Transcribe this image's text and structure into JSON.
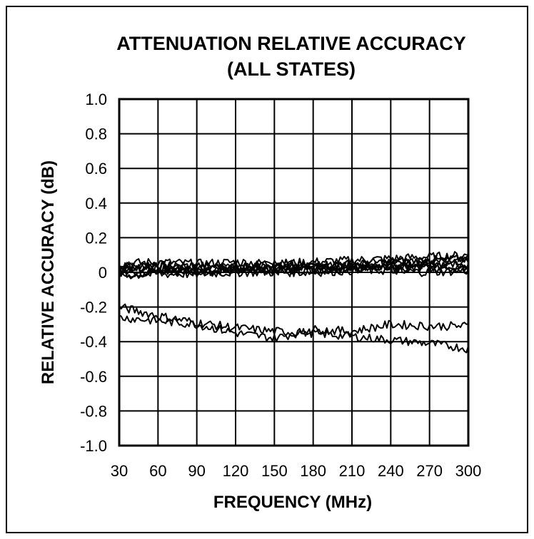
{
  "chart_data": {
    "type": "line",
    "title_lines": [
      "ATTENUATION RELATIVE ACCURACY",
      "(ALL STATES)"
    ],
    "xlabel": "FREQUENCY (MHz)",
    "ylabel": "RELATIVE ACCURACY (dB)",
    "xlim": [
      30,
      300
    ],
    "ylim": [
      -1.0,
      1.0
    ],
    "x_ticks": [
      30,
      60,
      90,
      120,
      150,
      180,
      210,
      240,
      270,
      300
    ],
    "x_tick_labels": [
      "30",
      "60",
      "90",
      "120",
      "150",
      "180",
      "210",
      "240",
      "270",
      "300"
    ],
    "y_ticks": [
      1.0,
      0.8,
      0.6,
      0.4,
      0.2,
      0,
      -0.2,
      -0.4,
      -0.6,
      -0.8,
      -1.0
    ],
    "y_tick_labels": [
      "1.0",
      "0.8",
      "0.6",
      "0.4",
      "0.2",
      "0",
      "-0.2",
      "-0.4",
      "-0.6",
      "-0.8",
      "-1.0"
    ],
    "grid": true,
    "line_color": "#000000",
    "series": [
      {
        "x": [
          30,
          60,
          90,
          120,
          150,
          180,
          210,
          240,
          270,
          300
        ],
        "y": [
          0.03,
          0.04,
          0.03,
          0.04,
          0.04,
          0.03,
          0.05,
          0.05,
          0.06,
          0.06
        ]
      },
      {
        "x": [
          30,
          60,
          90,
          120,
          150,
          180,
          210,
          240,
          270,
          300
        ],
        "y": [
          0.01,
          0.02,
          0.02,
          0.02,
          0.03,
          0.03,
          0.04,
          0.04,
          0.05,
          0.05
        ]
      },
      {
        "x": [
          30,
          60,
          90,
          120,
          150,
          180,
          210,
          240,
          270,
          300
        ],
        "y": [
          -0.01,
          0.0,
          0.01,
          0.01,
          0.01,
          0.02,
          0.02,
          0.03,
          0.03,
          0.04
        ]
      },
      {
        "x": [
          30,
          60,
          90,
          120,
          150,
          180,
          210,
          240,
          270,
          300
        ],
        "y": [
          0.05,
          0.06,
          0.05,
          0.06,
          0.05,
          0.06,
          0.07,
          0.08,
          0.09,
          0.1
        ]
      },
      {
        "x": [
          30,
          60,
          90,
          120,
          150,
          180,
          210,
          240,
          270,
          300
        ],
        "y": [
          0.0,
          0.01,
          0.0,
          0.02,
          0.02,
          0.01,
          0.03,
          0.02,
          0.02,
          0.03
        ]
      },
      {
        "x": [
          30,
          60,
          90,
          120,
          150,
          180,
          210,
          240,
          270,
          300
        ],
        "y": [
          0.04,
          0.03,
          0.04,
          0.03,
          0.05,
          0.04,
          0.05,
          0.06,
          0.07,
          0.08
        ]
      },
      {
        "x": [
          30,
          60,
          90,
          120,
          150,
          180,
          210,
          240,
          270,
          300
        ],
        "y": [
          0.02,
          0.03,
          0.01,
          0.03,
          0.02,
          0.04,
          0.03,
          0.05,
          0.04,
          0.07
        ]
      },
      {
        "x": [
          30,
          60,
          90,
          120,
          150,
          180,
          210,
          240,
          270,
          300
        ],
        "y": [
          -0.02,
          -0.01,
          -0.01,
          0.0,
          0.0,
          0.0,
          0.01,
          0.01,
          0.0,
          0.01
        ]
      },
      {
        "x": [
          30,
          60,
          90,
          120,
          150,
          180,
          210,
          240,
          270,
          300
        ],
        "y": [
          -0.2,
          -0.25,
          -0.29,
          -0.32,
          -0.34,
          -0.35,
          -0.37,
          -0.39,
          -0.41,
          -0.44
        ]
      },
      {
        "x": [
          30,
          60,
          90,
          120,
          150,
          180,
          210,
          240,
          270,
          300
        ],
        "y": [
          -0.26,
          -0.28,
          -0.3,
          -0.35,
          -0.38,
          -0.33,
          -0.34,
          -0.3,
          -0.31,
          -0.31
        ]
      }
    ]
  }
}
